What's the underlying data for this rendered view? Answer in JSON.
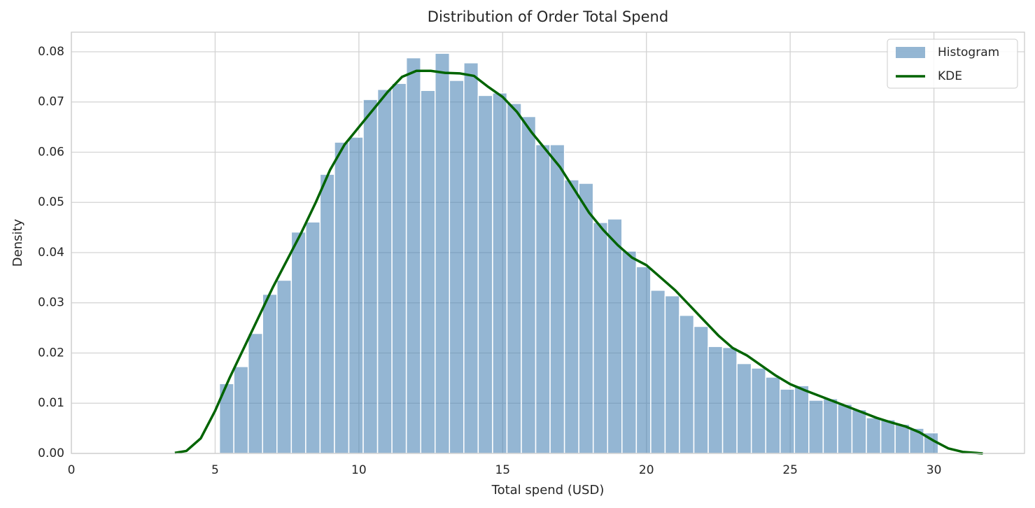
{
  "chart_data": {
    "type": "histogram",
    "title": "Distribution of Order Total Spend",
    "x_label": "Total spend (USD)",
    "y_label": "Density",
    "xlim": [
      0,
      33.15
    ],
    "ylim": [
      0,
      0.0839
    ],
    "xticks": [
      0,
      5,
      10,
      15,
      20,
      25,
      30
    ],
    "yticks": [
      {
        "value": 0,
        "label": "0.00"
      },
      0.01,
      0.02,
      0.03,
      0.04,
      0.05,
      0.06,
      0.07,
      0.08
    ],
    "grid": true,
    "legend": "upper right",
    "series": [
      {
        "name": "Histogram",
        "type": "histogram",
        "color": "#4682b4",
        "bins": [
          5.15,
          5.65,
          6.15,
          6.65,
          7.15,
          7.65,
          8.15,
          8.65,
          9.15,
          9.65,
          10.15,
          10.65,
          11.15,
          11.65,
          12.15,
          12.65,
          13.15,
          13.65,
          14.15,
          14.65,
          15.15,
          15.65,
          16.15,
          16.65,
          17.15,
          17.65,
          18.15,
          18.65,
          19.15,
          19.65,
          20.15,
          20.65,
          21.15,
          21.65,
          22.15,
          22.65,
          23.15,
          23.65,
          24.15,
          24.65,
          25.15,
          25.65,
          26.15,
          26.65,
          27.15,
          27.65,
          28.15,
          28.65,
          29.15,
          29.65,
          30.15
        ],
        "values": [
          0.0139,
          0.0173,
          0.0239,
          0.0317,
          0.0345,
          0.0441,
          0.0461,
          0.0556,
          0.062,
          0.063,
          0.0705,
          0.0725,
          0.0737,
          0.0788,
          0.0723,
          0.0797,
          0.0743,
          0.0778,
          0.0713,
          0.0718,
          0.0697,
          0.0671,
          0.0615,
          0.0615,
          0.0545,
          0.0538,
          0.046,
          0.0467,
          0.0403,
          0.0372,
          0.0325,
          0.0314,
          0.0275,
          0.0253,
          0.0213,
          0.0211,
          0.0179,
          0.017,
          0.0152,
          0.0128,
          0.0135,
          0.0106,
          0.0109,
          0.0098,
          0.0087,
          0.0071,
          0.0067,
          0.0058,
          0.005,
          0.0041
        ]
      },
      {
        "name": "KDE",
        "type": "line",
        "color": "#006400",
        "x": [
          3.6,
          4.0,
          4.5,
          5.0,
          5.5,
          6.0,
          6.5,
          7.0,
          7.5,
          8.0,
          8.5,
          9.0,
          9.5,
          10.0,
          10.5,
          11.0,
          11.5,
          12.0,
          12.5,
          13.0,
          13.5,
          14.0,
          14.5,
          15.0,
          15.5,
          16.0,
          16.5,
          17.0,
          17.5,
          18.0,
          18.5,
          19.0,
          19.5,
          20.0,
          20.5,
          21.0,
          21.5,
          22.0,
          22.5,
          23.0,
          23.5,
          24.0,
          24.5,
          25.0,
          25.5,
          26.0,
          26.5,
          27.0,
          27.5,
          28.0,
          28.5,
          29.0,
          29.5,
          30.0,
          30.5,
          31.0,
          31.7
        ],
        "values": [
          0.0001,
          0.0005,
          0.003,
          0.0085,
          0.015,
          0.021,
          0.027,
          0.033,
          0.0385,
          0.044,
          0.05,
          0.0565,
          0.0615,
          0.065,
          0.0685,
          0.072,
          0.075,
          0.0762,
          0.0762,
          0.0758,
          0.0757,
          0.0752,
          0.073,
          0.071,
          0.068,
          0.064,
          0.0605,
          0.057,
          0.0525,
          0.048,
          0.0445,
          0.0415,
          0.039,
          0.0375,
          0.035,
          0.0325,
          0.0295,
          0.0265,
          0.0235,
          0.021,
          0.0195,
          0.0175,
          0.0155,
          0.0138,
          0.0126,
          0.0115,
          0.0104,
          0.0093,
          0.0082,
          0.0071,
          0.0062,
          0.0054,
          0.0042,
          0.0025,
          0.001,
          0.0003,
          0
        ]
      }
    ]
  }
}
